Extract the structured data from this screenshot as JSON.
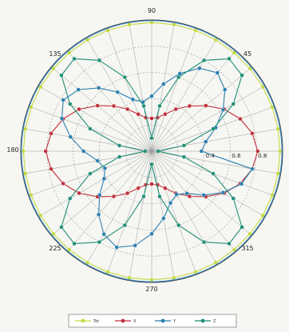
{
  "chart_data": {
    "type": "polar_line",
    "angle_unit": "degrees",
    "angle_labels": [
      "45",
      "90",
      "135",
      "180",
      "225",
      "270",
      "315"
    ],
    "radial_tick_labels": [
      "0.4",
      "0.6",
      "0.8"
    ],
    "rlim": [
      0,
      1
    ],
    "grid": true,
    "legend_position": "bottom",
    "legend_labels": [
      "Tot",
      "X",
      "Y",
      "Z"
    ],
    "colors": {
      "Tot": "#c6d940",
      "X": "#c0303c",
      "Y": "#2a7fb0",
      "Z": "#1f8f78",
      "grid_dark": "#333333",
      "grid_light": "#9a9a9a"
    },
    "theta": [
      0,
      10,
      20,
      30,
      40,
      50,
      60,
      70,
      80,
      90,
      100,
      110,
      120,
      130,
      140,
      150,
      160,
      170,
      180,
      190,
      200,
      210,
      220,
      230,
      240,
      250,
      260,
      270,
      280,
      290,
      300,
      310,
      320,
      330,
      340,
      350
    ],
    "series": [
      {
        "name": "Tot",
        "r": [
          0.98,
          0.98,
          0.98,
          0.98,
          0.98,
          0.98,
          0.98,
          0.98,
          0.98,
          0.98,
          0.98,
          0.98,
          0.98,
          0.98,
          0.98,
          0.98,
          0.98,
          0.98,
          0.98,
          0.98,
          0.98,
          0.98,
          0.98,
          0.98,
          0.98,
          0.98,
          0.98,
          0.98,
          0.98,
          0.98,
          0.98,
          0.98,
          0.98,
          0.98,
          0.98,
          0.98
        ]
      },
      {
        "name": "X",
        "r": [
          0.81,
          0.78,
          0.72,
          0.64,
          0.54,
          0.45,
          0.37,
          0.3,
          0.26,
          0.25,
          0.26,
          0.3,
          0.37,
          0.45,
          0.54,
          0.64,
          0.72,
          0.78,
          0.81,
          0.78,
          0.72,
          0.64,
          0.54,
          0.45,
          0.37,
          0.3,
          0.26,
          0.25,
          0.26,
          0.3,
          0.37,
          0.45,
          0.54,
          0.64,
          0.72,
          0.78
        ]
      },
      {
        "name": "Y",
        "r": [
          0.38,
          0.42,
          0.52,
          0.63,
          0.73,
          0.78,
          0.73,
          0.63,
          0.52,
          0.42,
          0.38,
          0.42,
          0.52,
          0.63,
          0.73,
          0.78,
          0.73,
          0.63,
          0.52,
          0.42,
          0.38,
          0.42,
          0.52,
          0.63,
          0.73,
          0.78,
          0.73,
          0.63,
          0.52,
          0.42,
          0.38,
          0.42,
          0.52,
          0.63,
          0.73,
          0.78
        ]
      },
      {
        "name": "Z",
        "r": [
          0.05,
          0.25,
          0.5,
          0.72,
          0.9,
          0.92,
          0.8,
          0.6,
          0.35,
          0.1,
          0.35,
          0.6,
          0.8,
          0.92,
          0.9,
          0.72,
          0.5,
          0.25,
          0.05,
          0.25,
          0.5,
          0.72,
          0.9,
          0.92,
          0.8,
          0.6,
          0.35,
          0.1,
          0.35,
          0.6,
          0.8,
          0.92,
          0.9,
          0.72,
          0.5,
          0.25
        ]
      }
    ]
  }
}
